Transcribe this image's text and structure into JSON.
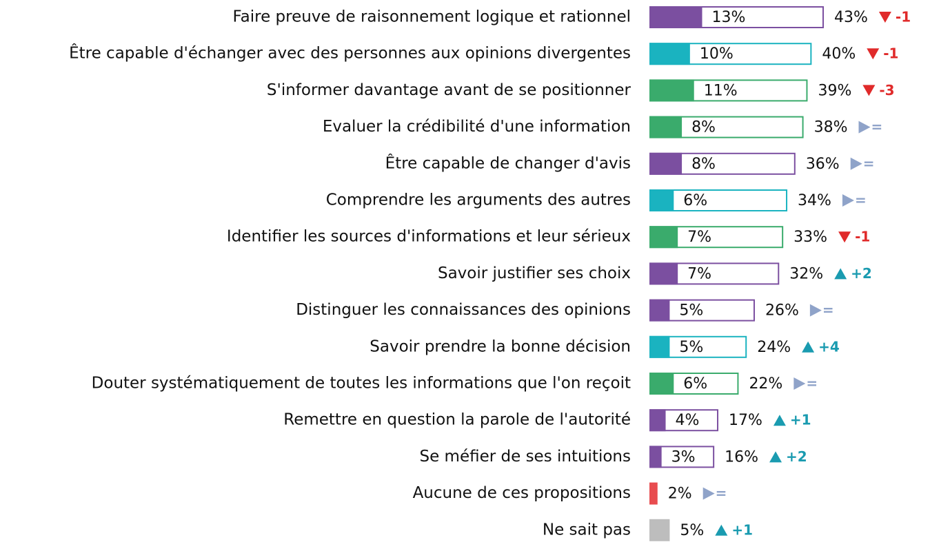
{
  "chart_data": {
    "type": "bar",
    "categories": [
      "Faire preuve de raisonnement logique et rationnel",
      "Être capable d'échanger avec des personnes aux opinions divergentes",
      "S'informer davantage avant de se positionner",
      "Evaluer la crédibilité d'une information",
      "Être capable de changer d'avis",
      "Comprendre les arguments des autres",
      "Identifier les sources d'informations et leur sérieux",
      "Savoir justifier ses choix",
      "Distinguer les connaissances des opinions",
      "Savoir prendre la bonne décision",
      "Douter systématiquement de toutes les informations que l'on reçoit",
      "Remettre en question la parole de l'autorité",
      "Se méfier de ses intuitions",
      "Aucune de ces propositions",
      "Ne sait pas"
    ],
    "colors": [
      "#7b4fa0",
      "#1ab3c0",
      "#3aab6c",
      "#3aab6c",
      "#7b4fa0",
      "#1ab3c0",
      "#3aab6c",
      "#7b4fa0",
      "#7b4fa0",
      "#1ab3c0",
      "#3aab6c",
      "#7b4fa0",
      "#7b4fa0",
      "#e84c4f",
      "#bdbdbd"
    ],
    "first_mention": {
      "values": [
        13,
        10,
        11,
        8,
        8,
        6,
        7,
        7,
        5,
        5,
        6,
        4,
        3,
        null,
        null
      ],
      "value_labels": [
        "13%",
        "10%",
        "11%",
        "8%",
        "8%",
        "6%",
        "7%",
        "7%",
        "5%",
        "5%",
        "6%",
        "4%",
        "3%",
        null,
        null
      ]
    },
    "total": {
      "values": [
        43,
        40,
        39,
        38,
        36,
        34,
        33,
        32,
        26,
        24,
        22,
        17,
        16,
        2,
        5
      ],
      "value_labels": [
        "43%",
        "40%",
        "39%",
        "38%",
        "36%",
        "34%",
        "33%",
        "32%",
        "26%",
        "24%",
        "22%",
        "17%",
        "16%",
        "2%",
        "5%"
      ]
    },
    "changes": {
      "values": [
        -1,
        -1,
        -3,
        0,
        0,
        0,
        -1,
        2,
        0,
        4,
        0,
        1,
        2,
        0,
        1
      ],
      "value_labels": [
        "-1",
        "-1",
        "-3",
        "=",
        "=",
        "=",
        "-1",
        "+2",
        "=",
        "+4",
        "=",
        "+1",
        "+2",
        "=",
        "+1"
      ]
    }
  }
}
